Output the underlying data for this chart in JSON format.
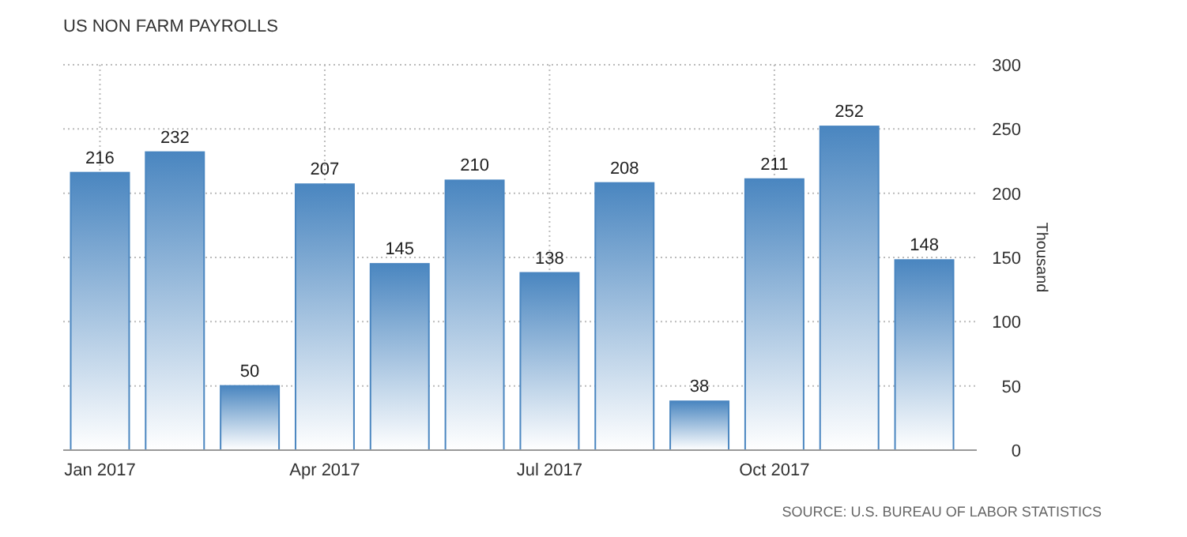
{
  "chart_data": {
    "type": "bar",
    "title": "US NON FARM PAYROLLS",
    "ylabel": "Thousand",
    "categories": [
      "Jan 2017",
      null,
      null,
      "Apr 2017",
      null,
      null,
      "Jul 2017",
      null,
      null,
      "Oct 2017",
      null,
      null
    ],
    "values": [
      216,
      232,
      50,
      207,
      145,
      210,
      138,
      208,
      38,
      211,
      252,
      148
    ],
    "color": "#4a86c0",
    "ylim": [
      0,
      300
    ],
    "yticks": [
      0,
      50,
      100,
      150,
      200,
      250,
      300
    ],
    "grid": true,
    "data_labels": true,
    "annotations": [
      "SOURCE: U.S. BUREAU OF LABOR STATISTICS"
    ]
  }
}
